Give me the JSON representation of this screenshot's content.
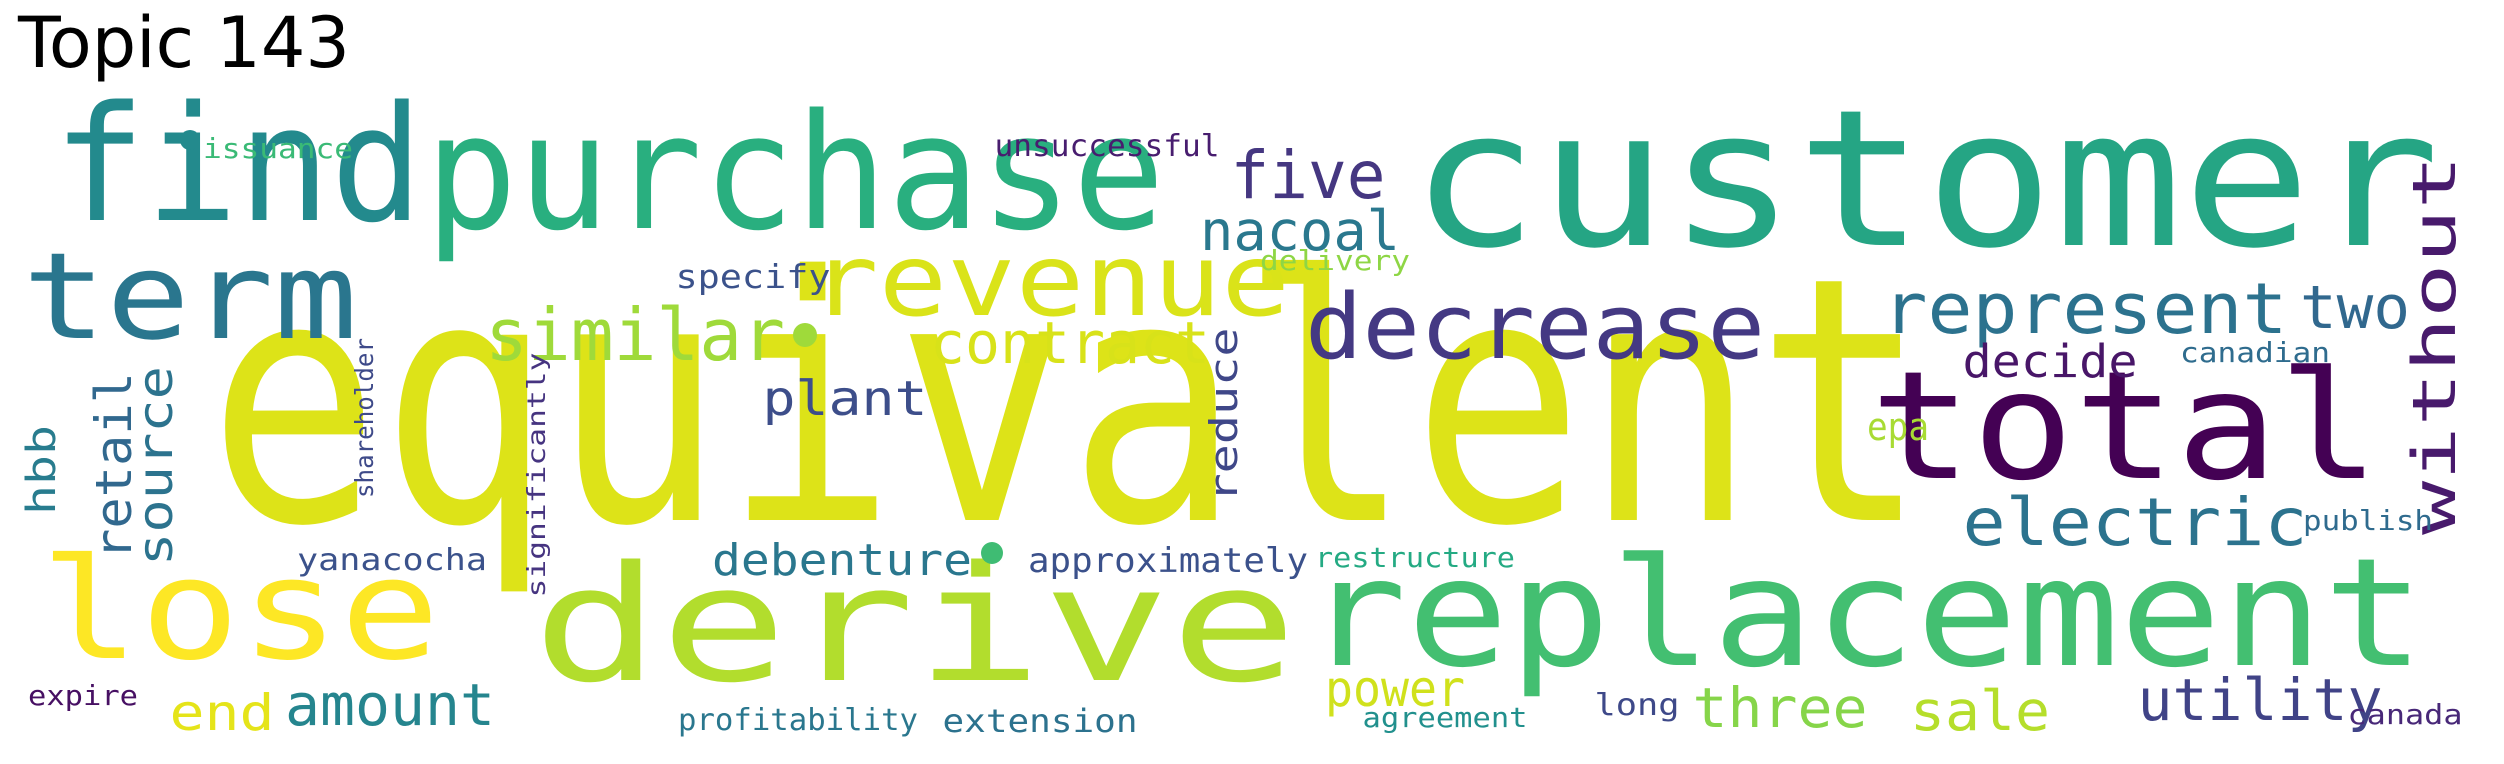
{
  "title": "Topic 143",
  "words": [
    {
      "text": "equivalent",
      "color": "#dde318"
    },
    {
      "text": "customer",
      "color": "#25a584"
    },
    {
      "text": "purchase",
      "color": "#29af7f"
    },
    {
      "text": "find",
      "color": "#238a8d"
    },
    {
      "text": "replacement",
      "color": "#43bf71"
    },
    {
      "text": "derive",
      "color": "#b2dd2d"
    },
    {
      "text": "total",
      "color": "#440154"
    },
    {
      "text": "lose",
      "color": "#fde725"
    },
    {
      "text": "term",
      "color": "#2a768e"
    },
    {
      "text": "revenue",
      "color": "#dae319"
    },
    {
      "text": "decrease",
      "color": "#443983"
    },
    {
      "text": "similar",
      "color": "#9fda3a"
    },
    {
      "text": "contract",
      "color": "#d8e219"
    },
    {
      "text": "represent",
      "color": "#2c728e"
    },
    {
      "text": "electric",
      "color": "#2c738e"
    },
    {
      "text": "five",
      "color": "#453781"
    },
    {
      "text": "nacoal",
      "color": "#2a788e"
    },
    {
      "text": "two",
      "color": "#31688e"
    },
    {
      "text": "decide",
      "color": "#481668"
    },
    {
      "text": "without",
      "color": "#481a6c"
    },
    {
      "text": "utility",
      "color": "#404387"
    },
    {
      "text": "three",
      "color": "#86d549"
    },
    {
      "text": "sale",
      "color": "#b5de2b"
    },
    {
      "text": "amount",
      "color": "#25858e"
    },
    {
      "text": "end",
      "color": "#e5e419"
    },
    {
      "text": "power",
      "color": "#d0e11c"
    },
    {
      "text": "debenture",
      "color": "#2a778e"
    },
    {
      "text": "approximately",
      "color": "#3b518b"
    },
    {
      "text": "plant",
      "color": "#3d4e8a"
    },
    {
      "text": "reduce",
      "color": "#3f4788"
    },
    {
      "text": "retail",
      "color": "#31688e"
    },
    {
      "text": "source",
      "color": "#2c738e"
    },
    {
      "text": "hbb",
      "color": "#287c8e"
    },
    {
      "text": "specify",
      "color": "#3b528b"
    },
    {
      "text": "unsuccessful",
      "color": "#481d6f"
    },
    {
      "text": "issuance",
      "color": "#3aba76"
    },
    {
      "text": "delivery",
      "color": "#8ed645"
    },
    {
      "text": "epa",
      "color": "#a8db34"
    },
    {
      "text": "canadian",
      "color": "#2f6c8e"
    },
    {
      "text": "publish",
      "color": "#2f6b8e"
    },
    {
      "text": "restructure",
      "color": "#24aa83"
    },
    {
      "text": "yanacocha",
      "color": "#3b528b"
    },
    {
      "text": "shareholder",
      "color": "#3e4a89"
    },
    {
      "text": "significantly",
      "color": "#463480"
    },
    {
      "text": "expire",
      "color": "#471063"
    },
    {
      "text": "profitability",
      "color": "#2a778e"
    },
    {
      "text": "extension",
      "color": "#2c728e"
    },
    {
      "text": "agreement",
      "color": "#21908d"
    },
    {
      "text": "long",
      "color": "#3e4989"
    },
    {
      "text": "canada",
      "color": "#482878"
    }
  ]
}
